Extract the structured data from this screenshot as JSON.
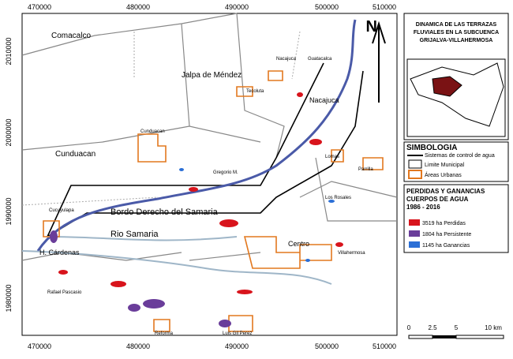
{
  "map": {
    "x_ticks": [
      "470000",
      "480000",
      "490000",
      "500000",
      "510000"
    ],
    "y_ticks": [
      "2010000",
      "2000000",
      "1990000",
      "1980000"
    ],
    "north": "N",
    "places": [
      "Comacalco",
      "Jalpa de Méndez",
      "Nacajuca",
      "Guatacalca",
      "Tecoluta",
      "Nacajuca",
      "Cunduacan",
      "Cunduacan",
      "Gregorio M.",
      "Bordo Derecho del Samaria",
      "Rio Samaria",
      "Cucuyulapa",
      "H. Cárdenas",
      "Centro",
      "Villahermosa",
      "Lomas",
      "Parrilla",
      "Los Rosales",
      "Rafael Pascasio",
      "Reforma",
      "Luis Gil Perez"
    ]
  },
  "title_lines": [
    "DINAMICA DE LAS TERRAZAS",
    "FLUVIALES EN LA SUBCUENCA",
    "GRIJALVA-VILLAHERMOSA"
  ],
  "legend": {
    "title": "SIMBOLOGIA",
    "items": [
      "Sistemas de control de agua",
      "Limite Municipal",
      "Áreas Urbanas"
    ]
  },
  "water": {
    "title_lines": [
      "PERDIDAS Y GANANCIAS",
      "CUERPOS DE AGUA"
    ],
    "period": "1986 - 2016",
    "items": [
      "3519 ha Perdidas",
      "1804 ha Persistente",
      "1145 ha Ganancias"
    ]
  },
  "scale": {
    "labels": [
      "0",
      "2.5",
      "5",
      "10 km"
    ]
  }
}
